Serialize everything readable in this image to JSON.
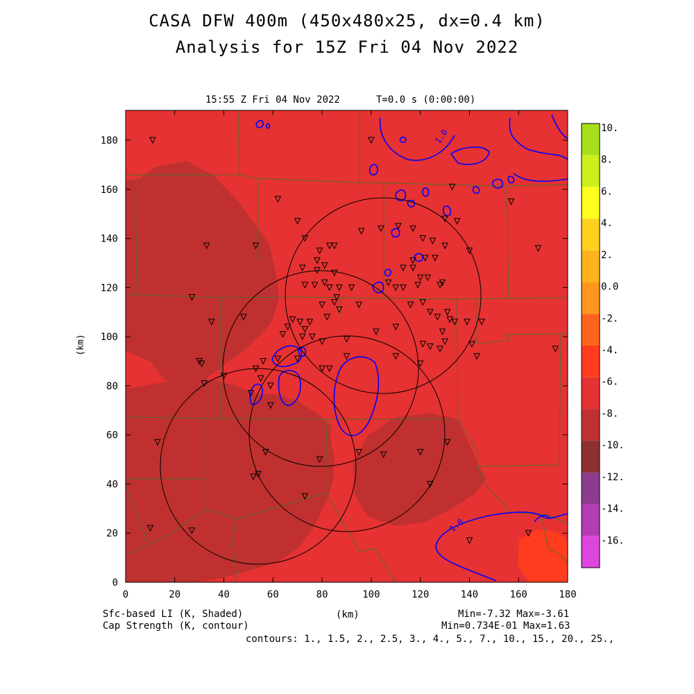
{
  "title": "CASA DFW 400m (450x480x25, dx=0.4 km)",
  "subtitle": "Analysis for 15Z Fri 04 Nov 2022",
  "timestamp": "15:55 Z Fri 04 Nov 2022",
  "time_label": "T=0.0 s (0:00:00)",
  "axes": {
    "x_ticks": [
      "0",
      "20",
      "40",
      "60",
      "80",
      "100",
      "120",
      "140",
      "160",
      "180"
    ],
    "y_ticks": [
      "0",
      "20",
      "40",
      "60",
      "80",
      "100",
      "120",
      "140",
      "160",
      "180"
    ],
    "x_unit": "(km)",
    "y_unit": "(km)"
  },
  "colorbar": {
    "labels": [
      "10.",
      "8.",
      "6.",
      "4.",
      "2.",
      "0.0",
      "-2.",
      "-4.",
      "-6.",
      "-8.",
      "-10.",
      "-12.",
      "-14.",
      "-16."
    ],
    "colors": [
      "#a6e01c",
      "#ccf01c",
      "#ffff1e",
      "#ffd21e",
      "#ffb41e",
      "#ff961e",
      "#ff641e",
      "#ff3c1e",
      "#e63232",
      "#c03030",
      "#8c3030",
      "#8c3c8c",
      "#b43cb4",
      "#dc46dc"
    ]
  },
  "footer": {
    "field1": "Sfc-based LI (K, Shaded)",
    "field2": "Cap Strength (K, contour)",
    "stats1": "Min=-7.32 Max=-3.61",
    "stats2": "Min=0.734E-01 Max=1.63",
    "contours": "contours: 1., 1.5, 2., 2.5, 3., 4., 5., 7., 10., 15., 20., 25.,"
  },
  "contour_labels": [
    "1.0",
    "1.0"
  ],
  "colors": {
    "field_base": "#e63232",
    "field_dark": "#c03030",
    "field_warm": "#ff3c1e",
    "county_lines": "#556b2f",
    "contour": "#0000ff"
  },
  "chart_data": {
    "type": "heatmap",
    "xlabel": "(km)",
    "ylabel": "(km)",
    "xlim": [
      0,
      180
    ],
    "ylim": [
      0,
      192
    ],
    "shaded_field": "Sfc-based LI (K, Shaded)",
    "contour_field": "Cap Strength (K, contour)",
    "shaded_min": -7.32,
    "shaded_max": -3.61,
    "contour_min": 0.0734,
    "contour_max": 1.63,
    "colorbar_range": [
      -16,
      10
    ],
    "radar_rings": [
      {
        "center_km": [
          104,
          116
        ],
        "radius_km": 40
      },
      {
        "center_km": [
          79,
          89
        ],
        "radius_km": 40
      },
      {
        "center_km": [
          90,
          61
        ],
        "radius_km": 40
      },
      {
        "center_km": [
          54,
          48
        ],
        "radius_km": 40
      }
    ]
  }
}
